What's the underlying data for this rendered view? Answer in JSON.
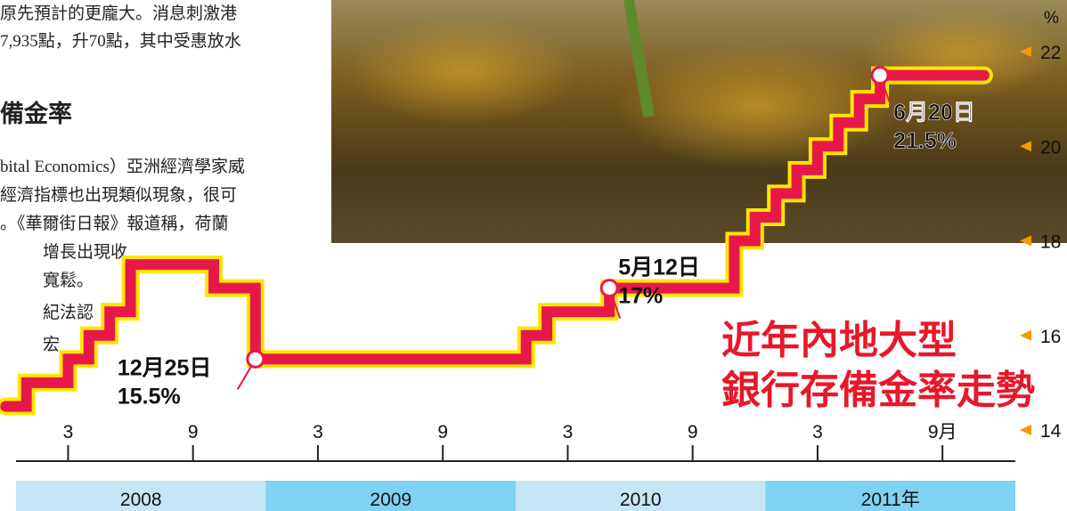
{
  "article": {
    "lines": [
      "原先預計的更龐大。消息刺激港",
      "7,935點，升70點，其中受惠放水"
    ],
    "heading": "備金率",
    "lines2": [
      "bital Economics）亞洲經濟學家威",
      "經濟指標也出現類似現象，很可",
      "。《華爾街日報》報道稱，荷蘭",
      "增長出現收",
      "寬鬆。",
      "紀法認",
      "宏"
    ]
  },
  "chart_data": {
    "type": "step-line",
    "title": [
      "近年內地大型",
      "銀行存備金率走勢"
    ],
    "y_unit": "%",
    "x": [
      "2007-12",
      "2008-01",
      "2008-03",
      "2008-04",
      "2008-05",
      "2008-06",
      "2008-10",
      "2008-12",
      "2010-01",
      "2010-02",
      "2010-05",
      "2010-11",
      "2010-12",
      "2011-01",
      "2011-02",
      "2011-03",
      "2011-04",
      "2011-05",
      "2011-06",
      "2011-11"
    ],
    "series": [
      {
        "color": "#e8174a",
        "outline": "#ffe600",
        "values": [
          14.5,
          15,
          15.5,
          16,
          16.5,
          17.5,
          17,
          15.5,
          16,
          16.5,
          17,
          18,
          18.5,
          19,
          19.5,
          20,
          20.5,
          21,
          21.5,
          21.5
        ]
      }
    ],
    "xlim": [
      "2008-01",
      "2011-12"
    ],
    "xticks": [
      {
        "value": "2008-03",
        "label": "3"
      },
      {
        "value": "2008-09",
        "label": "9"
      },
      {
        "value": "2009-03",
        "label": "3"
      },
      {
        "value": "2009-09",
        "label": "9"
      },
      {
        "value": "2010-03",
        "label": "3"
      },
      {
        "value": "2010-09",
        "label": "9"
      },
      {
        "value": "2011-03",
        "label": "3"
      },
      {
        "value": "2011-09",
        "label": "9月"
      }
    ],
    "year_bands": [
      "2008",
      "2009",
      "2010",
      "2011年"
    ],
    "ylim": [
      14,
      22
    ],
    "yticks": [
      14,
      16,
      18,
      20,
      22
    ],
    "annotations": [
      {
        "x": "2008-12",
        "date": "12月25日",
        "value": "15.5%"
      },
      {
        "x": "2010-05",
        "date": "5月12日",
        "value": "17%"
      },
      {
        "x": "2011-06",
        "date": "6月20日",
        "value": "21.5%"
      }
    ]
  }
}
